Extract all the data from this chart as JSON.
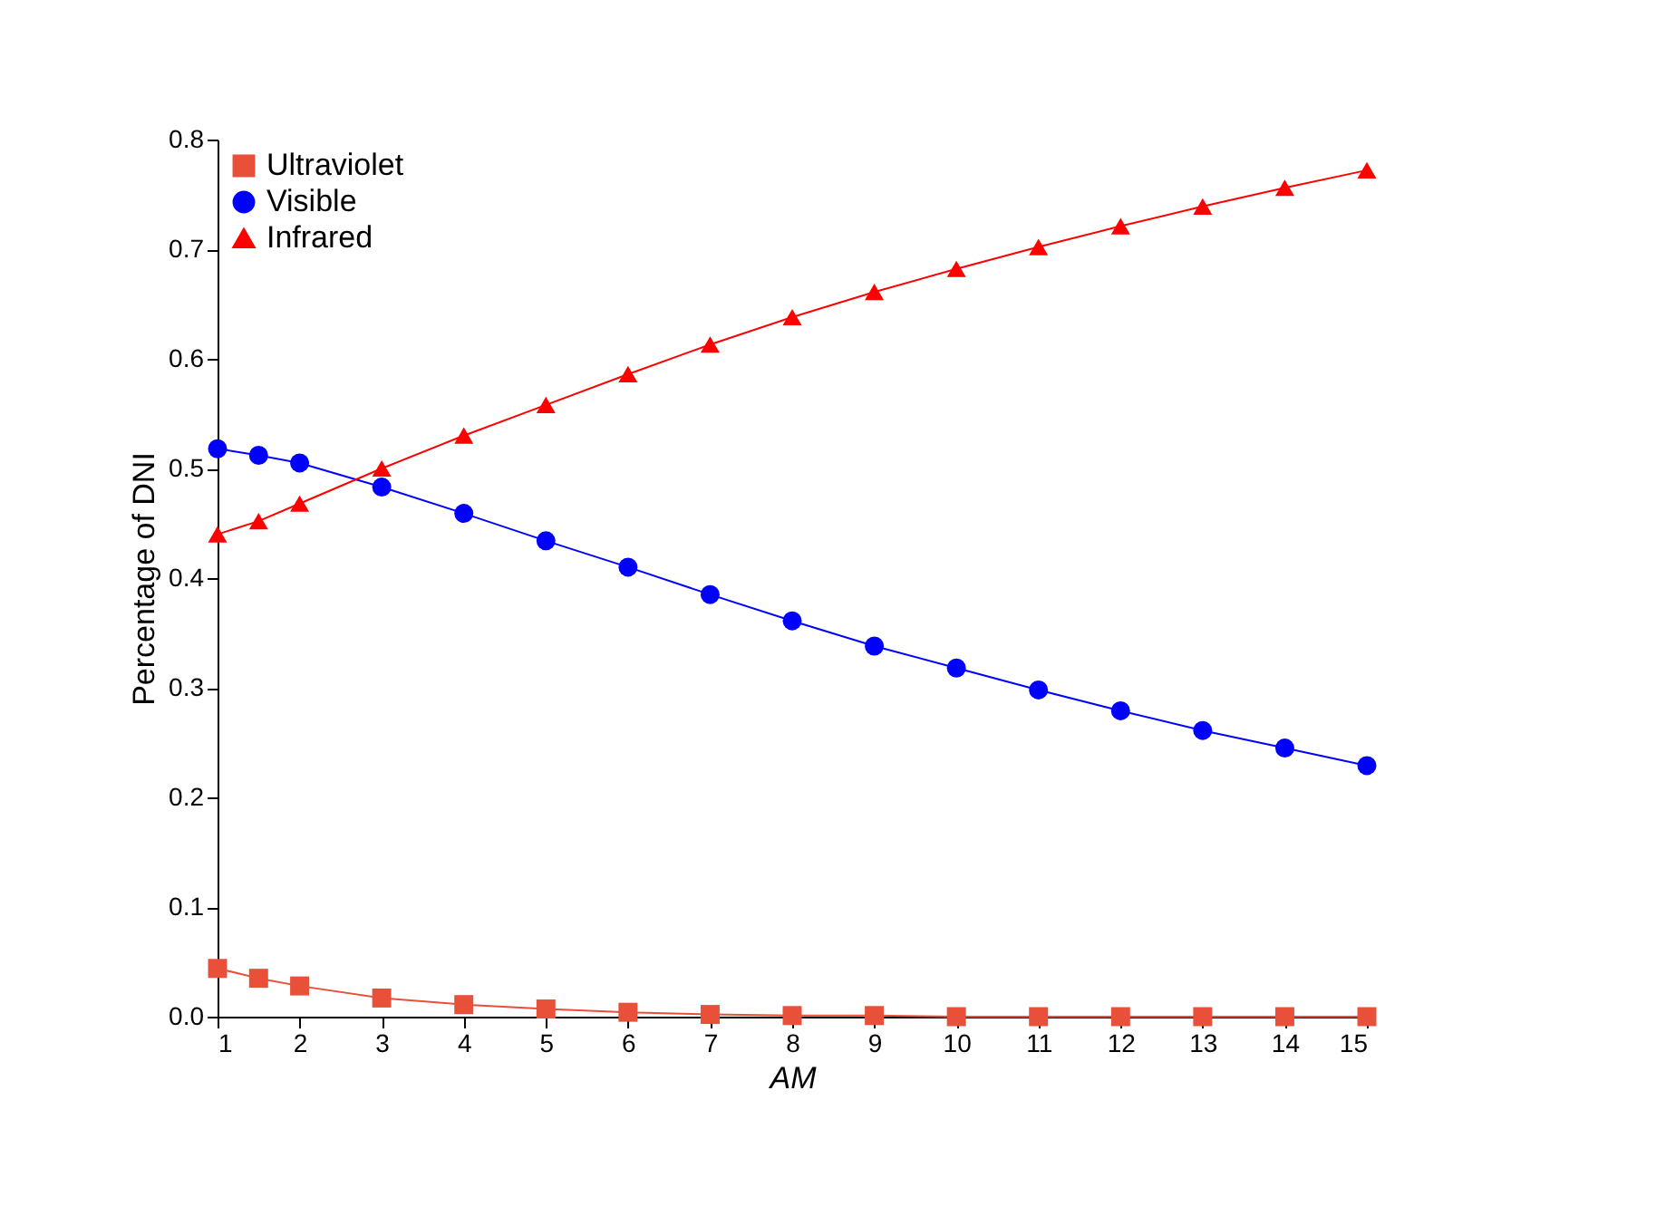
{
  "chart_data": {
    "type": "line",
    "xlabel": "AM",
    "ylabel": "Percentage of DNI",
    "x": [
      1,
      1.5,
      2,
      3,
      4,
      5,
      6,
      7,
      8,
      9,
      10,
      11,
      12,
      13,
      14,
      15
    ],
    "series": [
      {
        "name": "Ultraviolet",
        "color": "#e8503a",
        "marker": "square",
        "values": [
          0.044,
          0.035,
          0.028,
          0.017,
          0.011,
          0.007,
          0.004,
          0.002,
          0.001,
          0.001,
          0,
          0,
          0,
          0,
          0,
          0
        ]
      },
      {
        "name": "Visible",
        "color": "#0000ff",
        "marker": "circle",
        "values": [
          0.518,
          0.512,
          0.505,
          0.483,
          0.459,
          0.434,
          0.41,
          0.385,
          0.361,
          0.338,
          0.318,
          0.298,
          0.279,
          0.261,
          0.245,
          0.229
        ]
      },
      {
        "name": "Infrared",
        "color": "#ff0000",
        "marker": "triangle",
        "values": [
          0.44,
          0.452,
          0.468,
          0.5,
          0.53,
          0.558,
          0.586,
          0.613,
          0.638,
          0.661,
          0.682,
          0.702,
          0.721,
          0.739,
          0.756,
          0.772
        ]
      }
    ],
    "xlim": [
      1,
      15
    ],
    "xticks": [
      1,
      2,
      3,
      4,
      5,
      6,
      7,
      8,
      9,
      10,
      11,
      12,
      13,
      14,
      15
    ],
    "ylim": [
      0,
      0.8
    ],
    "yticks": [
      {
        "value": 0,
        "label": "0.0"
      },
      0.1,
      0.2,
      0.3,
      0.4,
      0.5,
      0.6,
      0.7,
      0.8
    ],
    "grid": false,
    "legend": "top left",
    "line_style": "solid"
  }
}
